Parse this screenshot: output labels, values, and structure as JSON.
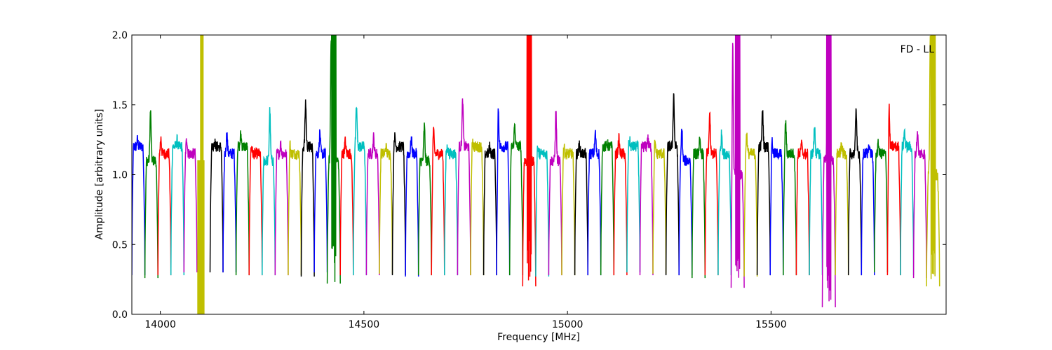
{
  "chart_data": {
    "type": "line",
    "annotation": "FD - LL",
    "xlabel": "Frequency [MHz]",
    "ylabel": "Amplitude [arbitrary units]",
    "xlim": [
      13930,
      15930
    ],
    "ylim": [
      0,
      2.0
    ],
    "xticks": [
      14000,
      14500,
      15000,
      15500
    ],
    "xtick_labels": [
      "14000",
      "14500",
      "15000",
      "15500"
    ],
    "yticks": [
      0.0,
      0.5,
      1.0,
      1.5,
      2.0
    ],
    "ytick_labels": [
      "0.0",
      "0.5",
      "1.0",
      "1.5",
      "2.0"
    ],
    "grid": false,
    "color_cycle": [
      "#0000ff",
      "#008000",
      "#ff0000",
      "#00bfbf",
      "#bf00bf",
      "#bfbf00",
      "#000000"
    ],
    "channel_width_mhz": 32,
    "channels": [
      {
        "start": 13930,
        "level": 1.2,
        "peak": 1.25,
        "min": 0.28
      },
      {
        "start": 13962,
        "level": 1.1,
        "peak": 1.46,
        "min": 0.26
      },
      {
        "start": 13994,
        "level": 1.15,
        "peak": 1.26,
        "min": 0.28
      },
      {
        "start": 14026,
        "level": 1.2,
        "peak": 1.25,
        "min": 0.28
      },
      {
        "start": 14058,
        "level": 1.15,
        "peak": 1.26,
        "min": 0.3
      },
      {
        "start": 14090,
        "level": 1.0,
        "peak": 2.0,
        "min": 0.0,
        "bad": true
      },
      {
        "start": 14122,
        "level": 1.2,
        "peak": 1.24,
        "min": 0.3
      },
      {
        "start": 14154,
        "level": 1.15,
        "peak": 1.3,
        "min": 0.3
      },
      {
        "start": 14186,
        "level": 1.2,
        "peak": 1.29,
        "min": 0.28
      },
      {
        "start": 14218,
        "level": 1.15,
        "peak": 1.2,
        "min": 0.28
      },
      {
        "start": 14250,
        "level": 1.1,
        "peak": 1.46,
        "min": 0.28
      },
      {
        "start": 14282,
        "level": 1.15,
        "peak": 1.22,
        "min": 0.28
      },
      {
        "start": 14314,
        "level": 1.15,
        "peak": 1.22,
        "min": 0.28
      },
      {
        "start": 14346,
        "level": 1.2,
        "peak": 1.52,
        "min": 0.27
      },
      {
        "start": 14378,
        "level": 1.15,
        "peak": 1.3,
        "min": 0.3
      },
      {
        "start": 14410,
        "level": 1.1,
        "peak": 2.0,
        "min": 0.22,
        "spike": true
      },
      {
        "start": 14442,
        "level": 1.15,
        "peak": 1.24,
        "min": 0.28
      },
      {
        "start": 14474,
        "level": 1.2,
        "peak": 1.49,
        "min": 0.28
      },
      {
        "start": 14506,
        "level": 1.15,
        "peak": 1.27,
        "min": 0.28
      },
      {
        "start": 14538,
        "level": 1.15,
        "peak": 1.2,
        "min": 0.29
      },
      {
        "start": 14570,
        "level": 1.2,
        "peak": 1.27,
        "min": 0.28
      },
      {
        "start": 14602,
        "level": 1.15,
        "peak": 1.26,
        "min": 0.27
      },
      {
        "start": 14634,
        "level": 1.1,
        "peak": 1.35,
        "min": 0.28
      },
      {
        "start": 14666,
        "level": 1.15,
        "peak": 1.31,
        "min": 0.28
      },
      {
        "start": 14698,
        "level": 1.15,
        "peak": 1.2,
        "min": 0.28
      },
      {
        "start": 14730,
        "level": 1.2,
        "peak": 1.53,
        "min": 0.28
      },
      {
        "start": 14762,
        "level": 1.2,
        "peak": 1.25,
        "min": 0.28
      },
      {
        "start": 14794,
        "level": 1.15,
        "peak": 1.2,
        "min": 0.28
      },
      {
        "start": 14826,
        "level": 1.2,
        "peak": 1.49,
        "min": 0.28
      },
      {
        "start": 14858,
        "level": 1.2,
        "peak": 1.36,
        "min": 0.28
      },
      {
        "start": 14890,
        "level": 1.1,
        "peak": 2.0,
        "min": 0.2,
        "spike": true
      },
      {
        "start": 14922,
        "level": 1.15,
        "peak": 1.2,
        "min": 0.27
      },
      {
        "start": 14954,
        "level": 1.1,
        "peak": 1.45,
        "min": 0.28
      },
      {
        "start": 14986,
        "level": 1.15,
        "peak": 1.2,
        "min": 0.28
      },
      {
        "start": 15018,
        "level": 1.15,
        "peak": 1.22,
        "min": 0.28
      },
      {
        "start": 15050,
        "level": 1.15,
        "peak": 1.3,
        "min": 0.28
      },
      {
        "start": 15082,
        "level": 1.2,
        "peak": 1.22,
        "min": 0.28
      },
      {
        "start": 15114,
        "level": 1.15,
        "peak": 1.26,
        "min": 0.28
      },
      {
        "start": 15146,
        "level": 1.2,
        "peak": 1.24,
        "min": 0.3
      },
      {
        "start": 15178,
        "level": 1.2,
        "peak": 1.26,
        "min": 0.28
      },
      {
        "start": 15210,
        "level": 1.15,
        "peak": 1.22,
        "min": 0.29
      },
      {
        "start": 15242,
        "level": 1.2,
        "peak": 1.57,
        "min": 0.28
      },
      {
        "start": 15274,
        "level": 1.1,
        "peak": 1.33,
        "min": 0.28
      },
      {
        "start": 15306,
        "level": 1.15,
        "peak": 1.24,
        "min": 0.26
      },
      {
        "start": 15338,
        "level": 1.15,
        "peak": 1.44,
        "min": 0.28
      },
      {
        "start": 15370,
        "level": 1.15,
        "peak": 1.3,
        "min": 0.28
      },
      {
        "start": 15402,
        "level": 1.0,
        "peak": 2.0,
        "min": 0.19,
        "spike": true
      },
      {
        "start": 15434,
        "level": 1.15,
        "peak": 1.29,
        "min": 0.27
      },
      {
        "start": 15466,
        "level": 1.2,
        "peak": 1.47,
        "min": 0.28
      },
      {
        "start": 15498,
        "level": 1.15,
        "peak": 1.26,
        "min": 0.28
      },
      {
        "start": 15530,
        "level": 1.15,
        "peak": 1.38,
        "min": 0.28
      },
      {
        "start": 15562,
        "level": 1.15,
        "peak": 1.22,
        "min": 0.28
      },
      {
        "start": 15594,
        "level": 1.15,
        "peak": 1.35,
        "min": 0.28
      },
      {
        "start": 15626,
        "level": 1.1,
        "peak": 2.0,
        "min": 0.05,
        "spike": true
      },
      {
        "start": 15658,
        "level": 1.15,
        "peak": 1.22,
        "min": 0.28
      },
      {
        "start": 15690,
        "level": 1.15,
        "peak": 1.49,
        "min": 0.28
      },
      {
        "start": 15722,
        "level": 1.15,
        "peak": 1.22,
        "min": 0.28
      },
      {
        "start": 15754,
        "level": 1.15,
        "peak": 1.22,
        "min": 0.3
      },
      {
        "start": 15786,
        "level": 1.2,
        "peak": 1.51,
        "min": 0.28
      },
      {
        "start": 15818,
        "level": 1.2,
        "peak": 1.31,
        "min": 0.28
      },
      {
        "start": 15850,
        "level": 1.15,
        "peak": 1.3,
        "min": 0.26
      },
      {
        "start": 15882,
        "level": 1.0,
        "peak": 2.0,
        "min": 0.2,
        "spike": true
      }
    ]
  }
}
